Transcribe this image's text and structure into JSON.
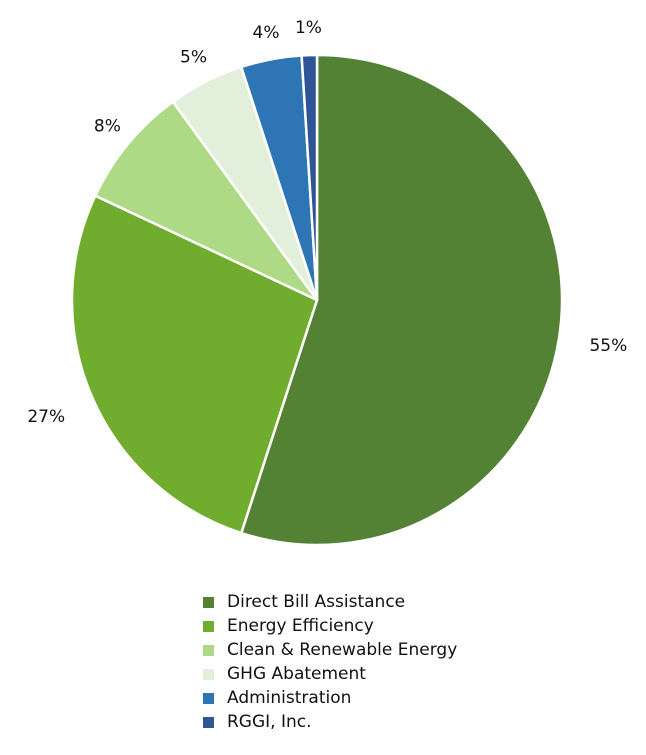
{
  "chart_data": {
    "type": "pie",
    "title": "",
    "slices": [
      {
        "label": "Direct Bill Assistance",
        "value": 55,
        "display": "55%",
        "color": "#548235"
      },
      {
        "label": "Energy Efficiency",
        "value": 27,
        "display": "27%",
        "color": "#70AD2F"
      },
      {
        "label": "Clean & Renewable Energy",
        "value": 8,
        "display": "8%",
        "color": "#AEDA86"
      },
      {
        "label": "GHG Abatement",
        "value": 5,
        "display": "5%",
        "color": "#E2EFDA"
      },
      {
        "label": "Administration",
        "value": 4,
        "display": "4%",
        "color": "#2E75B6"
      },
      {
        "label": "RGGI, Inc.",
        "value": 1,
        "display": "1%",
        "color": "#2F5597"
      }
    ],
    "legend_position": "bottom",
    "start_angle": "top, clockwise"
  }
}
